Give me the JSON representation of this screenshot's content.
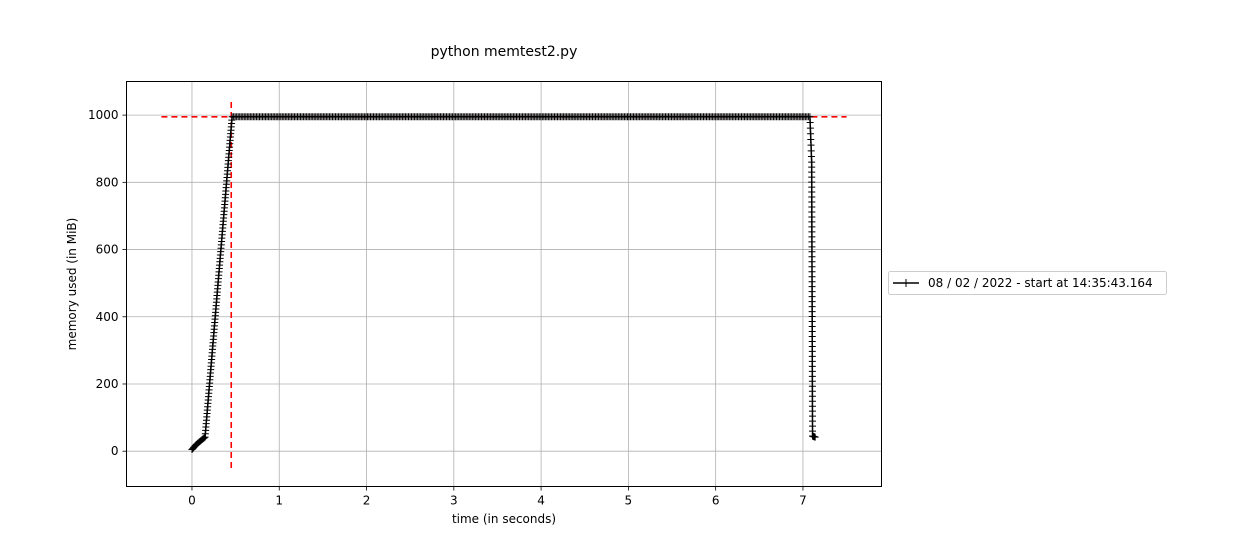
{
  "chart_data": {
    "type": "line",
    "title": "python memtest2.py",
    "xlabel": "time (in seconds)",
    "ylabel": "memory used (in MiB)",
    "xlim": [
      -0.75,
      7.9
    ],
    "ylim": [
      -105,
      1100
    ],
    "x_ticks": [
      0,
      1,
      2,
      3,
      4,
      5,
      6,
      7
    ],
    "x_tick_labels": [
      "0",
      "1",
      "2",
      "3",
      "4",
      "5",
      "6",
      "7"
    ],
    "y_ticks": [
      0,
      200,
      400,
      600,
      800,
      1000
    ],
    "y_tick_labels": [
      "0",
      "200",
      "400",
      "600",
      "800",
      "1000"
    ],
    "grid": true,
    "legend_placement": "outside-right",
    "series": [
      {
        "name": "08 / 02 / 2022 - start at 14:35:43.164",
        "color": "#000000",
        "marker": "+",
        "segments": [
          {
            "x_start": 0.0,
            "x_end": 0.05,
            "y_start": 5,
            "y_end": 20,
            "samples": 6
          },
          {
            "x_start": 0.05,
            "x_end": 0.15,
            "y_start": 20,
            "y_end": 42,
            "samples": 10
          },
          {
            "x_start": 0.15,
            "x_end": 0.46,
            "y_start": 42,
            "y_end": 995,
            "samples": 95
          },
          {
            "x_start": 0.46,
            "x_end": 7.08,
            "y_start": 995,
            "y_end": 995,
            "samples": 380
          },
          {
            "x_start": 7.08,
            "x_end": 7.1,
            "y_start": 995,
            "y_end": 860,
            "samples": 8
          },
          {
            "x_start": 7.1,
            "x_end": 7.11,
            "y_start": 860,
            "y_end": 45,
            "samples": 55
          },
          {
            "x_start": 7.11,
            "x_end": 7.14,
            "y_start": 45,
            "y_end": 42,
            "samples": 5
          }
        ]
      }
    ],
    "reference_lines": [
      {
        "orientation": "horizontal",
        "value": 995,
        "from": -0.35,
        "to": 7.5,
        "color": "#ff0000",
        "style": "dashed"
      },
      {
        "orientation": "vertical",
        "value": 0.45,
        "from": -50,
        "to": 1045,
        "color": "#ff0000",
        "style": "dashed"
      }
    ]
  }
}
